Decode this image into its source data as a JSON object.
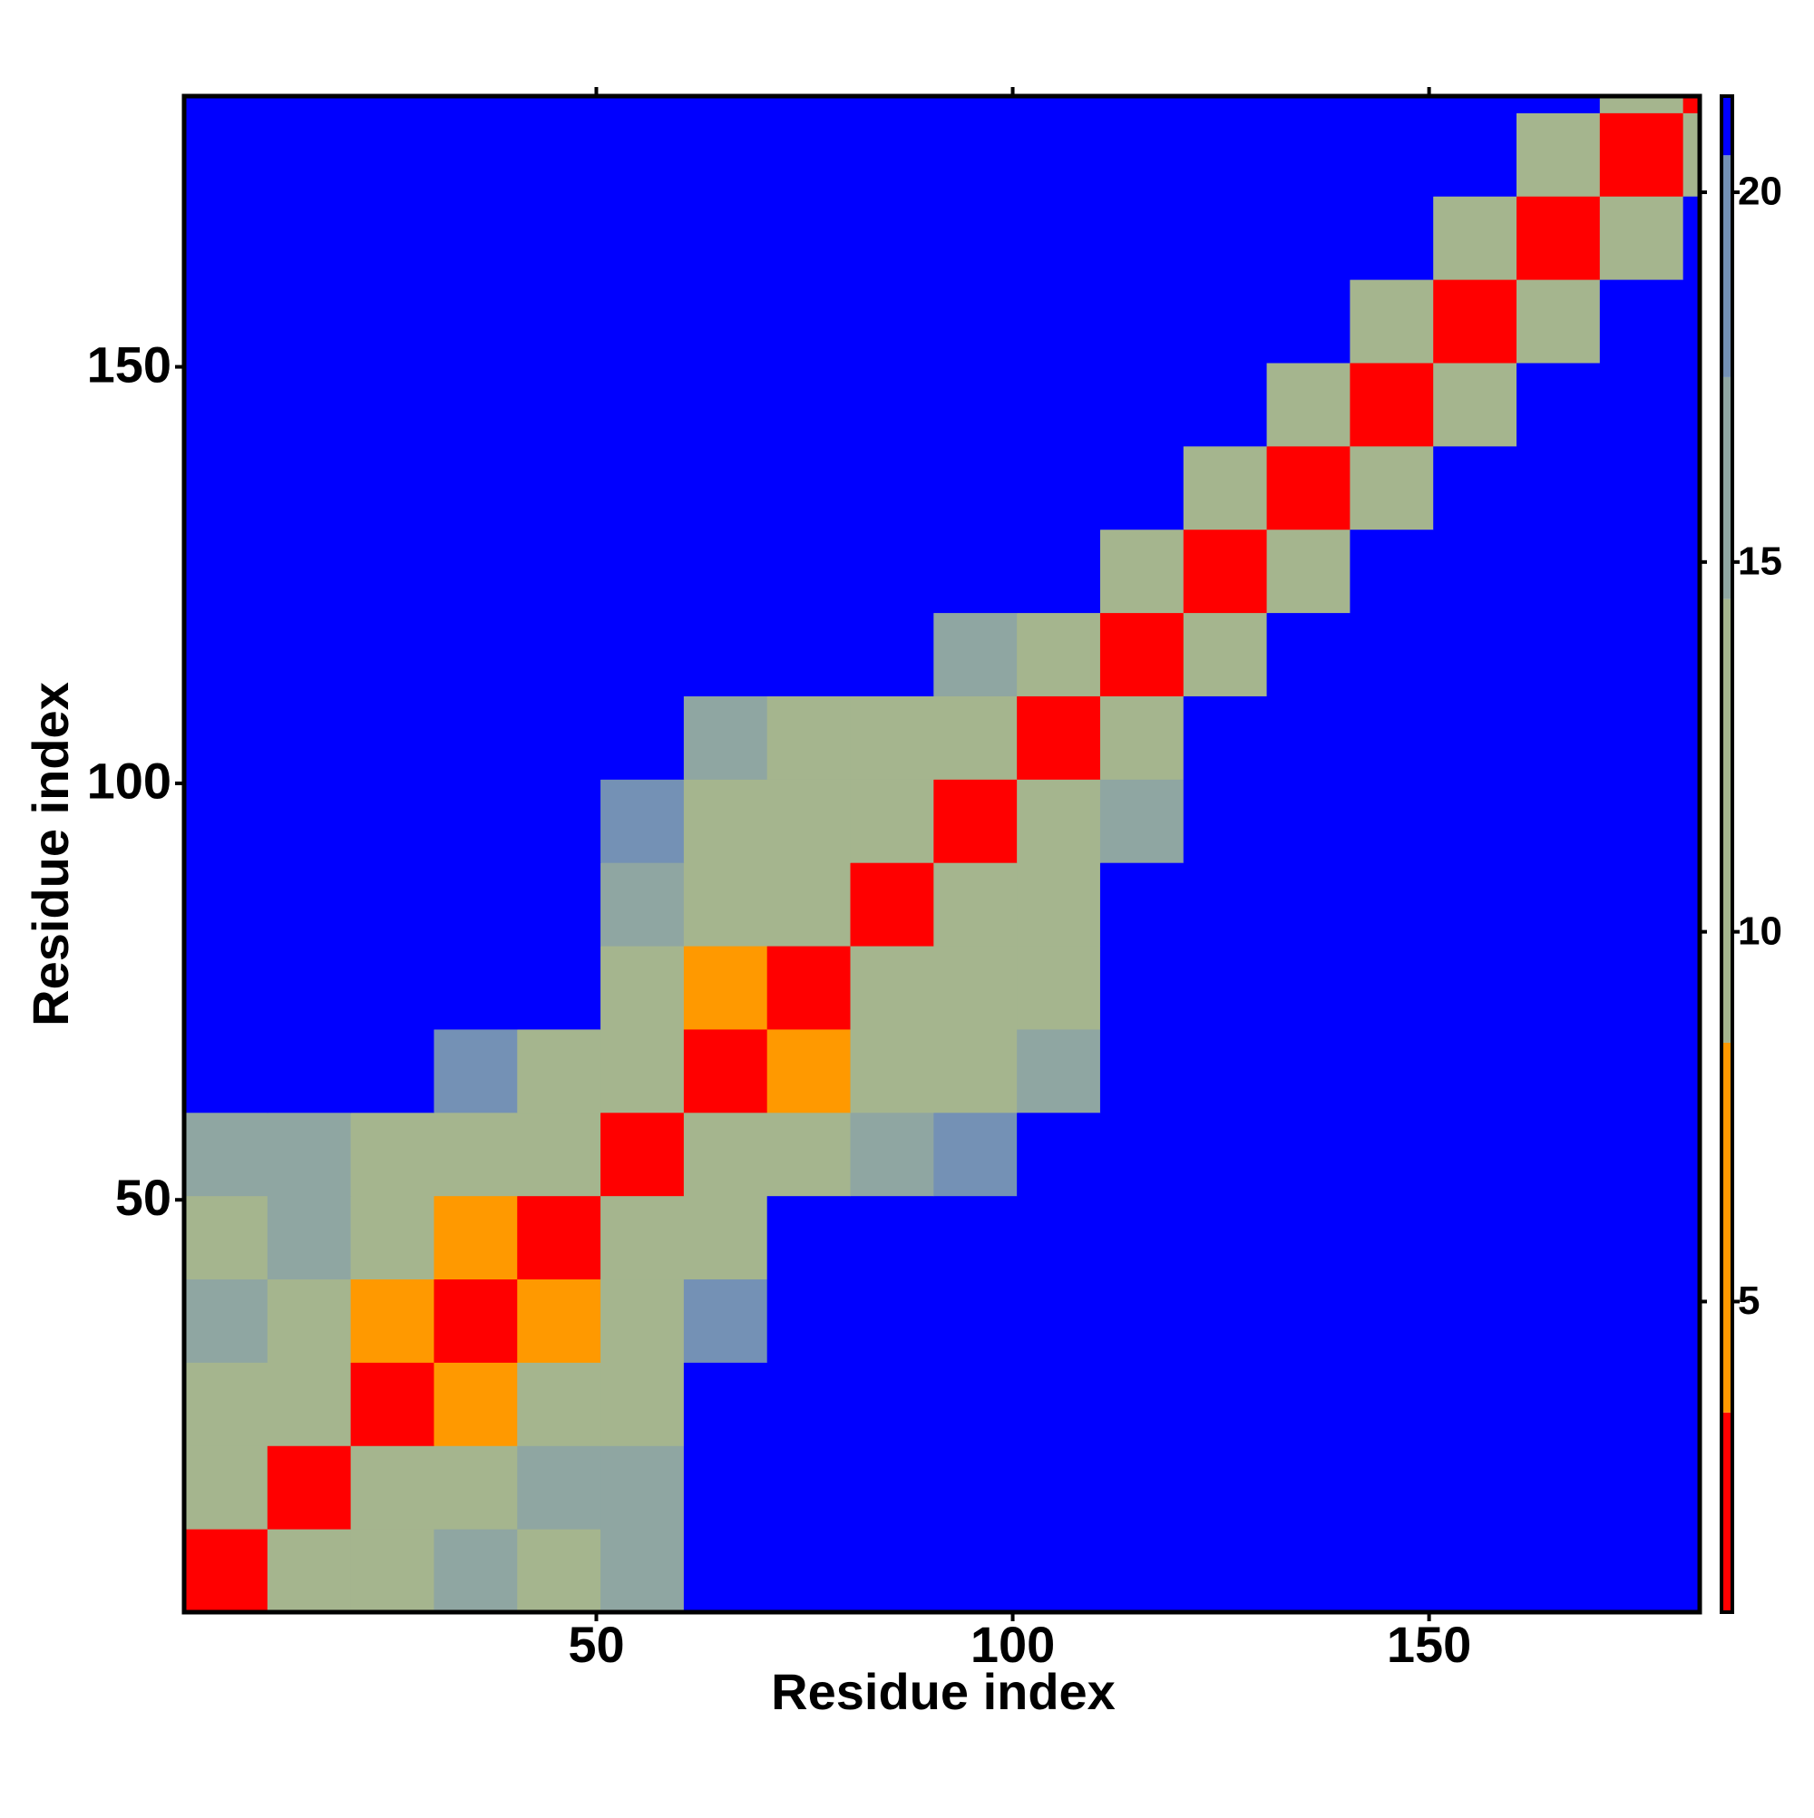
{
  "chart_data": {
    "type": "heatmap",
    "x_label": "Residue index",
    "y_label": "Residue index",
    "xlim": [
      0.5,
      182.5
    ],
    "ylim": [
      0.5,
      182.5
    ],
    "xticks": [
      50,
      100,
      150
    ],
    "yticks": [
      50,
      100,
      150
    ],
    "bin_edges": [
      0.5,
      10.5,
      20.5,
      30.5,
      40.5,
      50.5,
      60.5,
      70.5,
      80.5,
      90.5,
      100.5,
      110.5,
      120.5,
      130.5,
      140.5,
      150.5,
      160.5,
      170.5,
      180.5,
      182.5
    ],
    "matrix": [
      [
        3,
        10,
        14,
        15,
        14,
        15,
        21,
        21,
        21,
        21,
        21,
        21,
        21,
        21,
        21,
        21,
        21,
        21,
        21
      ],
      [
        10,
        3,
        10,
        14,
        16,
        17,
        21,
        21,
        21,
        21,
        21,
        21,
        21,
        21,
        21,
        21,
        21,
        21,
        21
      ],
      [
        14,
        10,
        3,
        8,
        11,
        13,
        21,
        21,
        21,
        21,
        21,
        21,
        21,
        21,
        21,
        21,
        21,
        21,
        21
      ],
      [
        15,
        14,
        8,
        3,
        8,
        11,
        18,
        21,
        21,
        21,
        21,
        21,
        21,
        21,
        21,
        21,
        21,
        21,
        21
      ],
      [
        14,
        16,
        11,
        8,
        3,
        9,
        13,
        21,
        21,
        21,
        21,
        21,
        21,
        21,
        21,
        21,
        21,
        21,
        21
      ],
      [
        15,
        17,
        13,
        11,
        9,
        3,
        10,
        14,
        16,
        18,
        21,
        21,
        21,
        21,
        21,
        21,
        21,
        21,
        21
      ],
      [
        21,
        21,
        21,
        18,
        13,
        10,
        3,
        8,
        11,
        13,
        16,
        21,
        21,
        21,
        21,
        21,
        21,
        21,
        21
      ],
      [
        21,
        21,
        21,
        21,
        21,
        14,
        8,
        3,
        9,
        10,
        14,
        21,
        21,
        21,
        21,
        21,
        21,
        21,
        21
      ],
      [
        21,
        21,
        21,
        21,
        21,
        16,
        11,
        9,
        3,
        9,
        12,
        21,
        21,
        21,
        21,
        21,
        21,
        21,
        21
      ],
      [
        21,
        21,
        21,
        21,
        21,
        18,
        13,
        10,
        9,
        3,
        9,
        16,
        21,
        21,
        21,
        21,
        21,
        21,
        21
      ],
      [
        21,
        21,
        21,
        21,
        21,
        21,
        16,
        14,
        12,
        9,
        3,
        12,
        21,
        21,
        21,
        21,
        21,
        21,
        21
      ],
      [
        21,
        21,
        21,
        21,
        21,
        21,
        21,
        21,
        21,
        16,
        12,
        3,
        12,
        21,
        21,
        21,
        21,
        21,
        21
      ],
      [
        21,
        21,
        21,
        21,
        21,
        21,
        21,
        21,
        21,
        21,
        21,
        12,
        3,
        12,
        21,
        21,
        21,
        21,
        21
      ],
      [
        21,
        21,
        21,
        21,
        21,
        21,
        21,
        21,
        21,
        21,
        21,
        21,
        12,
        3,
        12,
        21,
        21,
        21,
        21
      ],
      [
        21,
        21,
        21,
        21,
        21,
        21,
        21,
        21,
        21,
        21,
        21,
        21,
        21,
        12,
        3,
        12,
        21,
        21,
        21
      ],
      [
        21,
        21,
        21,
        21,
        21,
        21,
        21,
        21,
        21,
        21,
        21,
        21,
        21,
        21,
        12,
        3,
        12,
        21,
        21
      ],
      [
        21,
        21,
        21,
        21,
        21,
        21,
        21,
        21,
        21,
        21,
        21,
        21,
        21,
        21,
        21,
        12,
        3,
        12,
        21
      ],
      [
        21,
        21,
        21,
        21,
        21,
        21,
        21,
        21,
        21,
        21,
        21,
        21,
        21,
        21,
        21,
        21,
        12,
        3,
        10
      ],
      [
        21,
        21,
        21,
        21,
        21,
        21,
        21,
        21,
        21,
        21,
        21,
        21,
        21,
        21,
        21,
        21,
        21,
        10,
        3
      ]
    ],
    "colorbar": {
      "lim": [
        0.8,
        21.3
      ],
      "ticks": [
        5,
        10,
        15,
        20
      ],
      "levels": [
        {
          "upper": 3.5,
          "color": "#ff0000"
        },
        {
          "upper": 8.5,
          "color": "#ff9900"
        },
        {
          "upper": 14.5,
          "color": "#a5b58e"
        },
        {
          "upper": 17.5,
          "color": "#8fa6a2"
        },
        {
          "upper": 20.5,
          "color": "#7491b5"
        },
        {
          "upper": 21.3,
          "color": "#0000ff"
        }
      ]
    }
  }
}
